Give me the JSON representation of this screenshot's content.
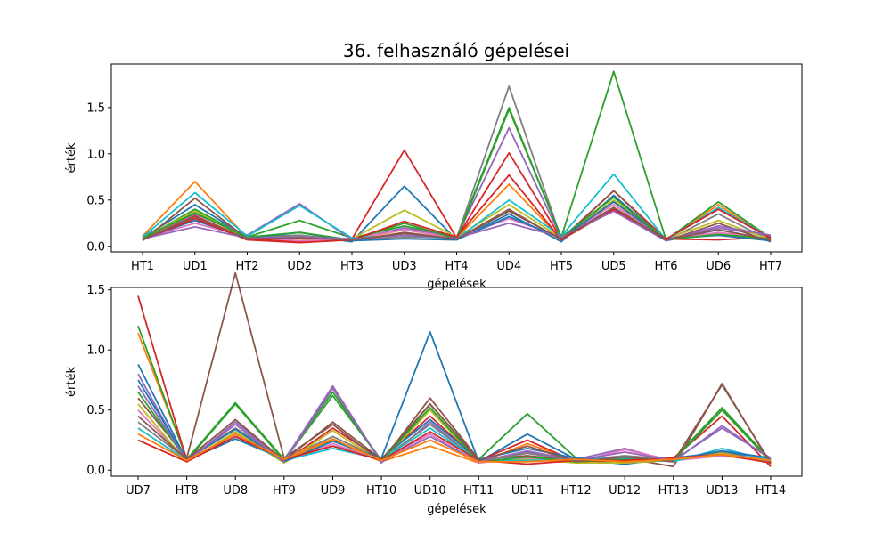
{
  "chart_data": [
    {
      "type": "line",
      "title": "36. felhasználó gépelései",
      "xlabel": "gépelések",
      "ylabel": "érték",
      "categories": [
        "HT1",
        "UD1",
        "HT2",
        "UD2",
        "HT3",
        "UD3",
        "HT4",
        "UD4",
        "HT5",
        "UD5",
        "HT6",
        "UD6",
        "HT7"
      ],
      "ylim": [
        -0.06,
        1.97
      ],
      "yticks": [
        "0.0",
        "0.5",
        "1.0",
        "1.5"
      ],
      "grid": false,
      "series": [
        {
          "color": "#1f77b4",
          "values": [
            0.09,
            0.45,
            0.1,
            0.12,
            0.05,
            0.65,
            0.07,
            0.35,
            0.05,
            0.55,
            0.06,
            0.18,
            0.07
          ]
        },
        {
          "color": "#ff7f0e",
          "values": [
            0.11,
            0.7,
            0.09,
            0.08,
            0.07,
            0.18,
            0.09,
            0.67,
            0.08,
            0.48,
            0.07,
            0.45,
            0.08
          ]
        },
        {
          "color": "#2ca02c",
          "values": [
            0.08,
            0.4,
            0.1,
            0.28,
            0.09,
            0.22,
            0.1,
            1.5,
            0.1,
            1.89,
            0.07,
            0.48,
            0.09
          ]
        },
        {
          "color": "#d62728",
          "values": [
            0.07,
            0.33,
            0.08,
            0.05,
            0.08,
            1.04,
            0.09,
            1.01,
            0.08,
            0.6,
            0.08,
            0.07,
            0.1
          ]
        },
        {
          "color": "#9467bd",
          "values": [
            0.09,
            0.35,
            0.12,
            0.46,
            0.07,
            0.2,
            0.1,
            1.28,
            0.09,
            0.42,
            0.07,
            0.2,
            0.11
          ]
        },
        {
          "color": "#8c564b",
          "values": [
            0.06,
            0.52,
            0.08,
            0.1,
            0.06,
            0.15,
            0.08,
            0.4,
            0.07,
            0.6,
            0.06,
            0.25,
            0.05
          ]
        },
        {
          "color": "#e377c2",
          "values": [
            0.08,
            0.25,
            0.1,
            0.06,
            0.08,
            0.18,
            0.09,
            0.3,
            0.1,
            0.45,
            0.07,
            0.15,
            0.08
          ]
        },
        {
          "color": "#7f7f7f",
          "values": [
            0.07,
            0.3,
            0.09,
            0.12,
            0.07,
            0.1,
            0.09,
            1.73,
            0.08,
            0.4,
            0.06,
            0.35,
            0.06
          ]
        },
        {
          "color": "#bcbd22",
          "values": [
            0.09,
            0.38,
            0.08,
            0.1,
            0.08,
            0.39,
            0.1,
            0.45,
            0.09,
            0.5,
            0.08,
            0.28,
            0.07
          ]
        },
        {
          "color": "#17becf",
          "values": [
            0.1,
            0.58,
            0.11,
            0.44,
            0.09,
            0.12,
            0.08,
            0.5,
            0.11,
            0.78,
            0.07,
            0.42,
            0.09
          ]
        },
        {
          "color": "#1f77b4",
          "values": [
            0.08,
            0.28,
            0.09,
            0.15,
            0.06,
            0.08,
            0.07,
            0.32,
            0.09,
            0.48,
            0.08,
            0.12,
            0.06
          ]
        },
        {
          "color": "#2ca02c",
          "values": [
            0.09,
            0.36,
            0.1,
            0.15,
            0.07,
            0.25,
            0.08,
            1.48,
            0.1,
            0.53,
            0.07,
            0.13,
            0.08
          ]
        },
        {
          "color": "#d62728",
          "values": [
            0.07,
            0.3,
            0.07,
            0.04,
            0.07,
            0.27,
            0.1,
            0.77,
            0.07,
            0.4,
            0.08,
            0.4,
            0.09
          ]
        },
        {
          "color": "#9467bd",
          "values": [
            0.08,
            0.21,
            0.09,
            0.1,
            0.08,
            0.12,
            0.09,
            0.25,
            0.1,
            0.38,
            0.06,
            0.22,
            0.12
          ]
        },
        {
          "color": "#8c564b",
          "values": [
            0.07,
            0.32,
            0.08,
            0.09,
            0.07,
            0.14,
            0.08,
            0.38,
            0.08,
            0.42,
            0.07,
            0.18,
            0.07
          ]
        }
      ]
    },
    {
      "type": "line",
      "xlabel": "gépelések",
      "ylabel": "érték",
      "categories": [
        "UD7",
        "HT8",
        "UD8",
        "HT9",
        "UD9",
        "HT10",
        "UD10",
        "HT11",
        "UD11",
        "HT12",
        "UD12",
        "HT13",
        "UD13",
        "HT14"
      ],
      "ylim": [
        -0.05,
        1.52
      ],
      "yticks": [
        "0.0",
        "0.5",
        "1.0",
        "1.5"
      ],
      "grid": false,
      "series": [
        {
          "color": "#1f77b4",
          "values": [
            0.88,
            0.08,
            0.26,
            0.09,
            0.2,
            0.1,
            1.15,
            0.07,
            0.3,
            0.09,
            0.05,
            0.1,
            0.15,
            0.1
          ]
        },
        {
          "color": "#ff7f0e",
          "values": [
            1.14,
            0.1,
            0.35,
            0.08,
            0.25,
            0.07,
            0.2,
            0.06,
            0.22,
            0.08,
            0.09,
            0.08,
            0.12,
            0.07
          ]
        },
        {
          "color": "#2ca02c",
          "values": [
            1.2,
            0.09,
            0.56,
            0.09,
            0.65,
            0.08,
            0.55,
            0.09,
            0.47,
            0.1,
            0.1,
            0.09,
            0.52,
            0.08
          ]
        },
        {
          "color": "#d62728",
          "values": [
            1.45,
            0.08,
            0.3,
            0.07,
            0.35,
            0.09,
            0.45,
            0.08,
            0.25,
            0.07,
            0.08,
            0.1,
            0.45,
            0.03
          ]
        },
        {
          "color": "#9467bd",
          "values": [
            0.8,
            0.07,
            0.4,
            0.08,
            0.7,
            0.06,
            0.4,
            0.07,
            0.15,
            0.09,
            0.18,
            0.07,
            0.37,
            0.09
          ]
        },
        {
          "color": "#8c564b",
          "values": [
            0.6,
            0.1,
            1.64,
            0.1,
            0.38,
            0.07,
            0.6,
            0.09,
            0.12,
            0.08,
            0.1,
            0.03,
            0.72,
            0.05
          ]
        },
        {
          "color": "#e377c2",
          "values": [
            0.5,
            0.08,
            0.3,
            0.07,
            0.22,
            0.08,
            0.3,
            0.06,
            0.1,
            0.07,
            0.17,
            0.08,
            0.12,
            0.09
          ]
        },
        {
          "color": "#7f7f7f",
          "values": [
            0.4,
            0.09,
            0.35,
            0.09,
            0.28,
            0.09,
            0.38,
            0.08,
            0.14,
            0.08,
            0.12,
            0.09,
            0.15,
            0.07
          ]
        },
        {
          "color": "#bcbd22",
          "values": [
            0.55,
            0.07,
            0.32,
            0.06,
            0.33,
            0.07,
            0.5,
            0.07,
            0.09,
            0.06,
            0.06,
            0.08,
            0.14,
            0.06
          ]
        },
        {
          "color": "#17becf",
          "values": [
            0.35,
            0.08,
            0.28,
            0.08,
            0.18,
            0.09,
            0.35,
            0.08,
            0.08,
            0.09,
            0.1,
            0.07,
            0.18,
            0.08
          ]
        },
        {
          "color": "#1f77b4",
          "values": [
            0.75,
            0.09,
            0.34,
            0.07,
            0.24,
            0.1,
            0.42,
            0.09,
            0.18,
            0.1,
            0.07,
            0.09,
            0.16,
            0.1
          ]
        },
        {
          "color": "#2ca02c",
          "values": [
            0.65,
            0.08,
            0.55,
            0.08,
            0.62,
            0.08,
            0.52,
            0.07,
            0.11,
            0.07,
            0.09,
            0.08,
            0.5,
            0.07
          ]
        },
        {
          "color": "#d62728",
          "values": [
            0.25,
            0.07,
            0.28,
            0.09,
            0.2,
            0.08,
            0.32,
            0.08,
            0.05,
            0.08,
            0.08,
            0.1,
            0.13,
            0.06
          ]
        },
        {
          "color": "#9467bd",
          "values": [
            0.7,
            0.08,
            0.38,
            0.07,
            0.68,
            0.07,
            0.28,
            0.07,
            0.16,
            0.08,
            0.15,
            0.08,
            0.35,
            0.1
          ]
        },
        {
          "color": "#8c564b",
          "values": [
            0.45,
            0.09,
            0.42,
            0.08,
            0.4,
            0.09,
            0.55,
            0.08,
            0.2,
            0.07,
            0.11,
            0.07,
            0.71,
            0.06
          ]
        },
        {
          "color": "#ff7f0e",
          "values": [
            0.3,
            0.08,
            0.3,
            0.09,
            0.26,
            0.08,
            0.25,
            0.07,
            0.07,
            0.09,
            0.07,
            0.09,
            0.13,
            0.08
          ]
        }
      ]
    }
  ]
}
